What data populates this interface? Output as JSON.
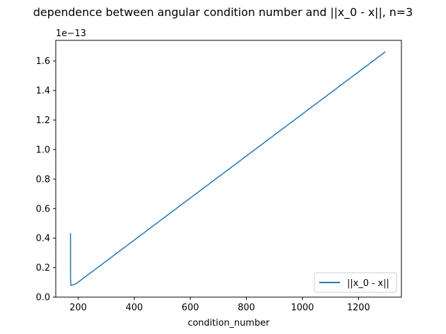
{
  "chart_data": {
    "type": "line",
    "title": "dependence between angular condition number and ||x_0 - x||, n=3",
    "xlabel": "condition_number",
    "ylabel": "",
    "y_offset_text": "1e−13",
    "xlim": [
      120,
      1353
    ],
    "ylim": [
      0,
      1.74
    ],
    "xticks": [
      200,
      400,
      600,
      800,
      1000,
      1200
    ],
    "yticks": [
      0.0,
      0.2,
      0.4,
      0.6,
      0.8,
      1.0,
      1.2,
      1.4,
      1.6
    ],
    "ytick_labels": [
      "0.0",
      "0.2",
      "0.4",
      "0.6",
      "0.8",
      "1.0",
      "1.2",
      "1.4",
      "1.6"
    ],
    "legend_position": "lower right",
    "grid": false,
    "series": [
      {
        "name": "||x_0 - x||",
        "color": "#1f77b4",
        "x": [
          173,
          173,
          173,
          173,
          173,
          173,
          174,
          177,
          185,
          192,
          1294
        ],
        "y": [
          0.29,
          0.43,
          0.3,
          0.42,
          0.35,
          0.13,
          0.08,
          0.08,
          0.085,
          0.09,
          1.66
        ]
      }
    ]
  }
}
